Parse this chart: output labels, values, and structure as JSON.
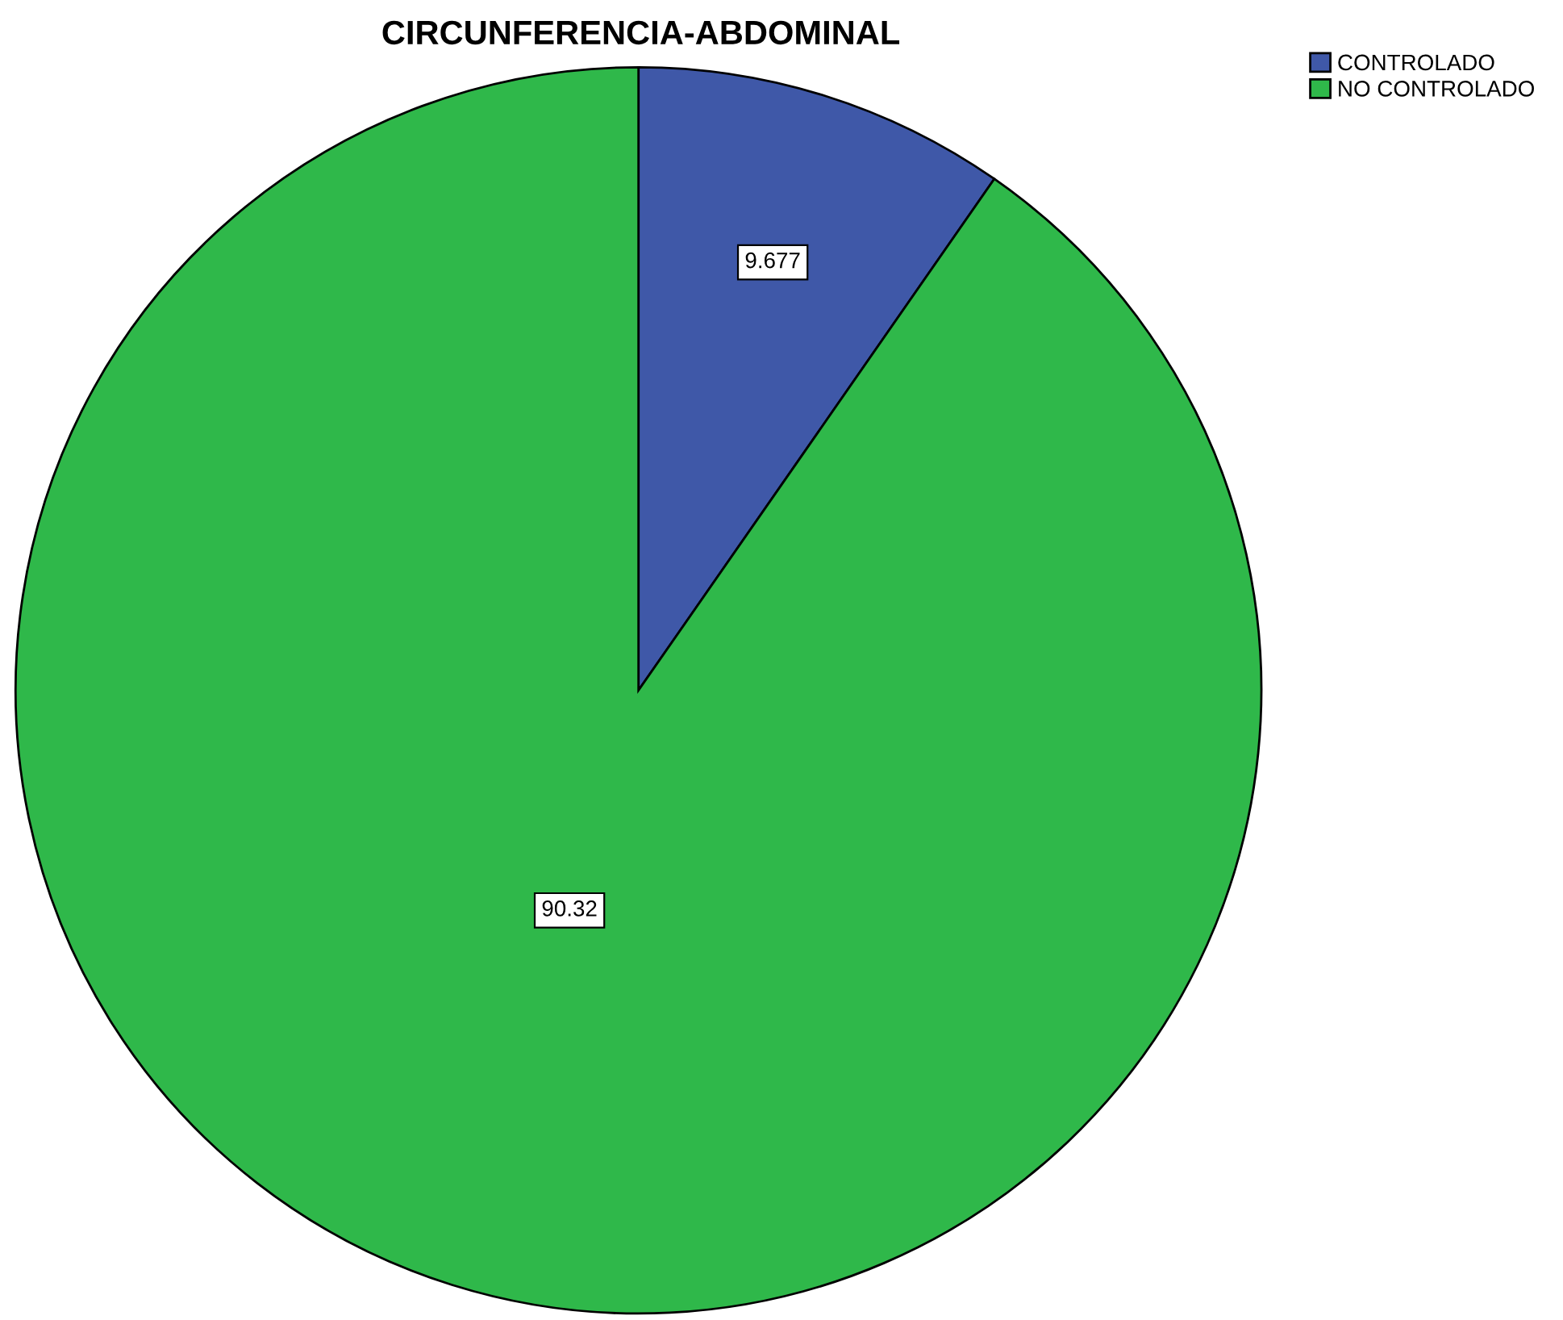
{
  "chart_data": {
    "type": "pie",
    "title": "CIRCUNFERENCIA-ABDOMINAL",
    "categories": [
      "CONTROLADO",
      "NO CONTROLADO"
    ],
    "values": [
      9.677,
      90.32
    ],
    "colors": [
      "#3f58a8",
      "#2fb84a"
    ],
    "data_labels": true,
    "legend": "top right"
  }
}
